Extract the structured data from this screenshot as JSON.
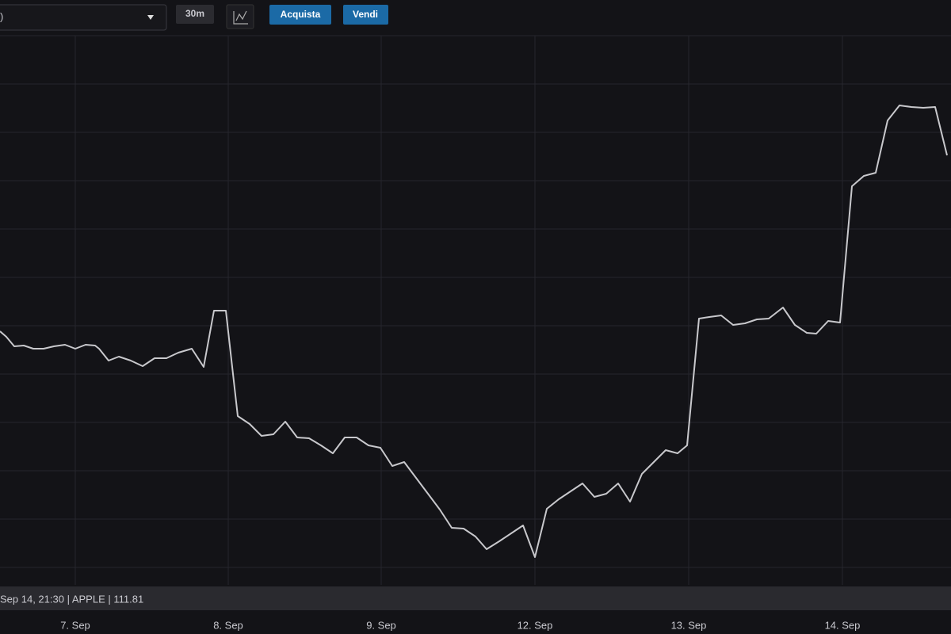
{
  "toolbar": {
    "symbol_select": ")",
    "interval": "30m",
    "buy": "Acquista",
    "sell": "Vendi"
  },
  "status_bar": "Sep 14, 21:30 | APPLE | 111.81",
  "chart_data": {
    "type": "line",
    "color": "#c8c8cc",
    "x": [
      0,
      8,
      18,
      30,
      42,
      55,
      68,
      82,
      95,
      108,
      120,
      125,
      137,
      150,
      165,
      180,
      195,
      210,
      225,
      242,
      257,
      270,
      285,
      300,
      315,
      330,
      345,
      360,
      375,
      390,
      405,
      420,
      435,
      450,
      465,
      480,
      495,
      510,
      525,
      540,
      555,
      570,
      585,
      600,
      614,
      630,
      645,
      660,
      675,
      690,
      705,
      720,
      735,
      750,
      765,
      780,
      795,
      810,
      825,
      840,
      855,
      867,
      882,
      895,
      910,
      925,
      940,
      955,
      970,
      988,
      1003,
      1018,
      1030,
      1045,
      1060,
      1075,
      1090,
      1105,
      1120,
      1135,
      1150,
      1165,
      1180,
      1195
    ],
    "values": [
      382,
      375,
      363,
      364,
      360,
      360,
      363,
      365,
      360,
      365,
      364,
      360,
      345,
      350,
      345,
      338,
      348,
      348,
      355,
      360,
      337,
      408,
      408,
      275,
      265,
      250,
      252,
      268,
      248,
      247,
      238,
      228,
      248,
      248,
      238,
      235,
      212,
      217,
      197,
      177,
      157,
      134,
      133,
      123,
      107,
      117,
      127,
      137,
      97,
      158,
      170,
      180,
      190,
      173,
      177,
      190,
      167,
      202,
      217,
      232,
      228,
      238,
      398,
      400,
      402,
      390,
      392,
      397,
      398,
      412,
      390,
      380,
      379,
      395,
      393,
      565,
      578,
      582,
      648,
      667,
      665,
      664,
      665,
      604
    ],
    "xlim": [
      0,
      1200
    ],
    "ylim": [
      62,
      755
    ],
    "xticks": [
      {
        "value": 95,
        "label": "7. Sep"
      },
      {
        "value": 288,
        "label": "8. Sep"
      },
      {
        "value": 481,
        "label": "9. Sep"
      },
      {
        "value": 675,
        "label": "12. Sep"
      },
      {
        "value": 869,
        "label": "13. Sep"
      },
      {
        "value": 1063,
        "label": "14. Sep"
      }
    ],
    "grid": true
  }
}
